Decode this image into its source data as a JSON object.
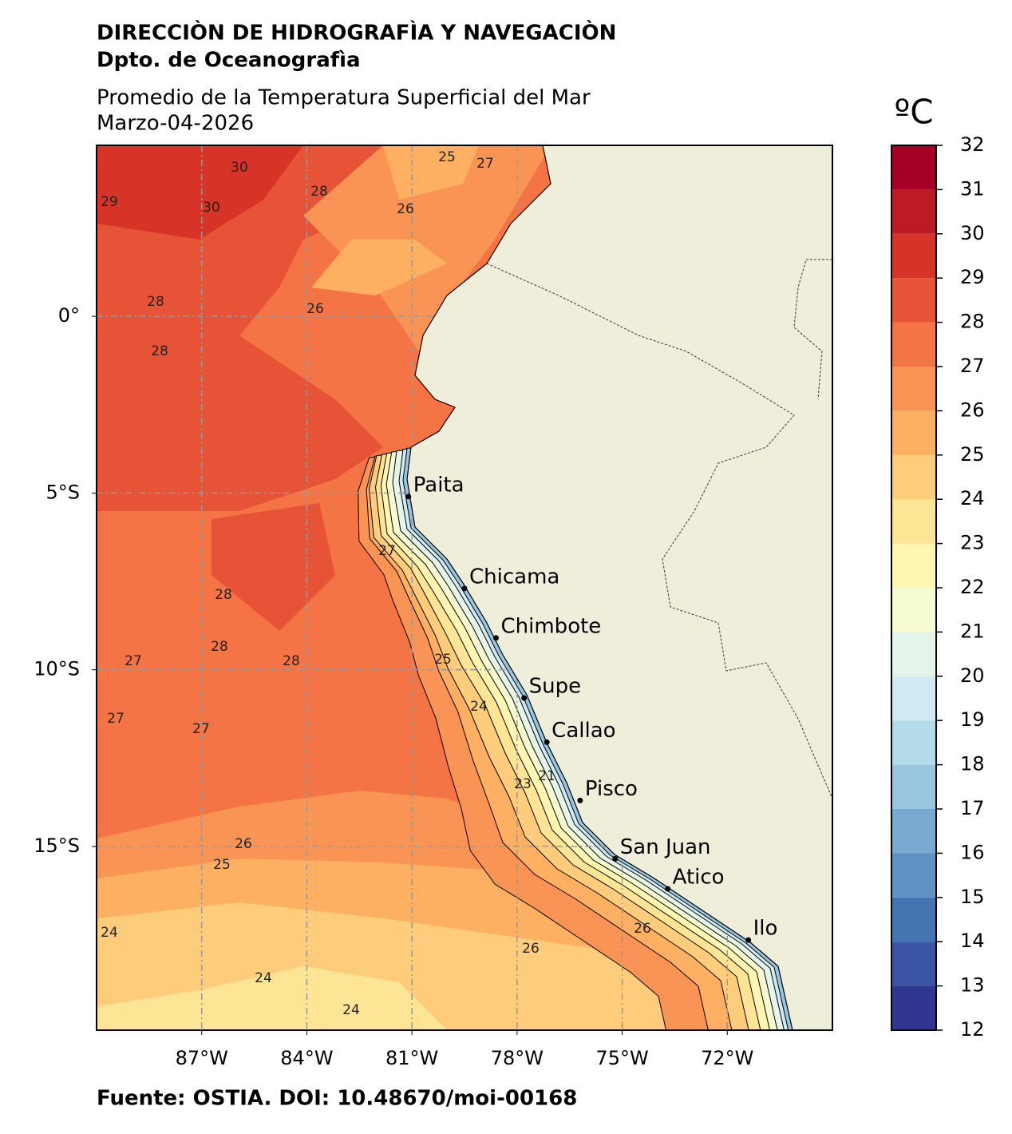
{
  "header": {
    "institution": "DIRECCIÒN DE HIDROGRAFÌA Y NAVEGACIÒN",
    "department": "Dpto. de Oceanografìa"
  },
  "map": {
    "title": "Promedio de la Temperatura Superficial del Mar",
    "date": "Marzo-04-2026",
    "xlim": [
      -90,
      -69
    ],
    "ylim": [
      -20.2,
      4.84
    ],
    "xticks": [
      {
        "value": -87,
        "label": "87°W"
      },
      {
        "value": -84,
        "label": "84°W"
      },
      {
        "value": -81,
        "label": "81°W"
      },
      {
        "value": -78,
        "label": "78°W"
      },
      {
        "value": -75,
        "label": "75°W"
      },
      {
        "value": -72,
        "label": "72°W"
      }
    ],
    "yticks": [
      {
        "value": 0,
        "label": "0°"
      },
      {
        "value": -5,
        "label": "5°S"
      },
      {
        "value": -10,
        "label": "10°S"
      },
      {
        "value": -15,
        "label": "15°S"
      }
    ],
    "grid": true,
    "land_color": "#efeedb",
    "ports": [
      {
        "name": "Paita",
        "lon": -81.1,
        "lat": -5.1
      },
      {
        "name": "Chicama",
        "lon": -79.5,
        "lat": -7.7
      },
      {
        "name": "Chimbote",
        "lon": -78.6,
        "lat": -9.1
      },
      {
        "name": "Supe",
        "lon": -77.8,
        "lat": -10.8
      },
      {
        "name": "Callao",
        "lon": -77.15,
        "lat": -12.05
      },
      {
        "name": "Pisco",
        "lon": -76.2,
        "lat": -13.7
      },
      {
        "name": "San Juan",
        "lon": -75.2,
        "lat": -15.35
      },
      {
        "name": "Atico",
        "lon": -73.7,
        "lat": -16.2
      },
      {
        "name": "Ilo",
        "lon": -71.4,
        "lat": -17.65
      }
    ],
    "contour_labels": [
      29,
      30,
      30,
      28,
      25,
      26,
      27,
      26,
      28,
      28,
      28,
      28,
      28,
      27,
      27,
      27,
      25,
      24,
      23,
      21,
      26,
      25,
      24,
      24,
      24,
      26,
      26,
      27
    ]
  },
  "colorbar": {
    "unit": "ºC",
    "ylim": [
      12,
      32
    ],
    "yticks": [
      12,
      13,
      14,
      15,
      16,
      17,
      18,
      19,
      20,
      21,
      22,
      23,
      24,
      25,
      26,
      27,
      28,
      29,
      30,
      31,
      32
    ],
    "colors": [
      "#313695",
      "#3a54a4",
      "#4574b3",
      "#5f91c2",
      "#78a9d0",
      "#98c6df",
      "#b4dbe9",
      "#d0ebf3",
      "#e6f5ec",
      "#f6fbd2",
      "#fff7b1",
      "#fee595",
      "#fdcd7c",
      "#fdb062",
      "#fa9454",
      "#f57446",
      "#e75337",
      "#d83327",
      "#bd1a26",
      "#a50026"
    ]
  },
  "footer": {
    "source": "Fuente: OSTIA. DOI: 10.48670/moi-00168"
  }
}
